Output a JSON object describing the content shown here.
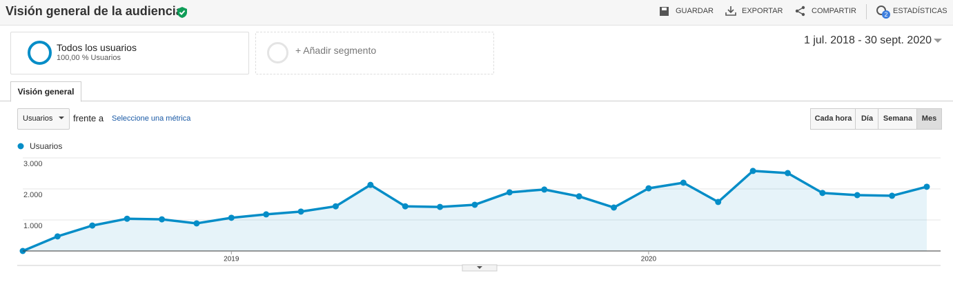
{
  "header": {
    "title": "Visión general de la audiencia",
    "actions": [
      "GUARDAR",
      "EXPORTAR",
      "COMPARTIR",
      "ESTADÍSTICAS"
    ],
    "badge": "2"
  },
  "segments": [
    {
      "name": "Todos los usuarios",
      "detail": "100,00 % Usuarios"
    },
    {
      "name": "+ Añadir segmento"
    }
  ],
  "date_range": "1 jul. 2018 - 30 sept. 2020",
  "tab": "Visión general",
  "controls": {
    "metric": "Usuarios",
    "compare": "frente a",
    "select": "Seleccione una métrica",
    "granularity": [
      "Cada hora",
      "Día",
      "Semana",
      "Mes"
    ],
    "active": 3
  },
  "chart_data": {
    "type": "line",
    "area": true,
    "grid": true,
    "categories": [
      null,
      null,
      null,
      null,
      null,
      null,
      "2019",
      null,
      null,
      null,
      null,
      null,
      null,
      null,
      null,
      null,
      null,
      null,
      "2020",
      null,
      null,
      null,
      null,
      null,
      null,
      null,
      null
    ],
    "series": [
      {
        "name": "Usuarios",
        "color": "#058dc7",
        "values": [
          0,
          470,
          820,
          1040,
          1020,
          890,
          1070,
          1180,
          1270,
          1440,
          2130,
          1440,
          1420,
          1490,
          1890,
          1980,
          1760,
          1400,
          2020,
          2200,
          1580,
          2580,
          2510,
          1870,
          1800,
          1780,
          2070
        ]
      }
    ],
    "ylim": [
      0,
      3000
    ],
    "yticks": [
      {
        "value": 1000,
        "label": "1.000"
      },
      {
        "value": 2000,
        "label": "2.000"
      },
      {
        "value": 3000,
        "label": "3.000"
      }
    ]
  }
}
